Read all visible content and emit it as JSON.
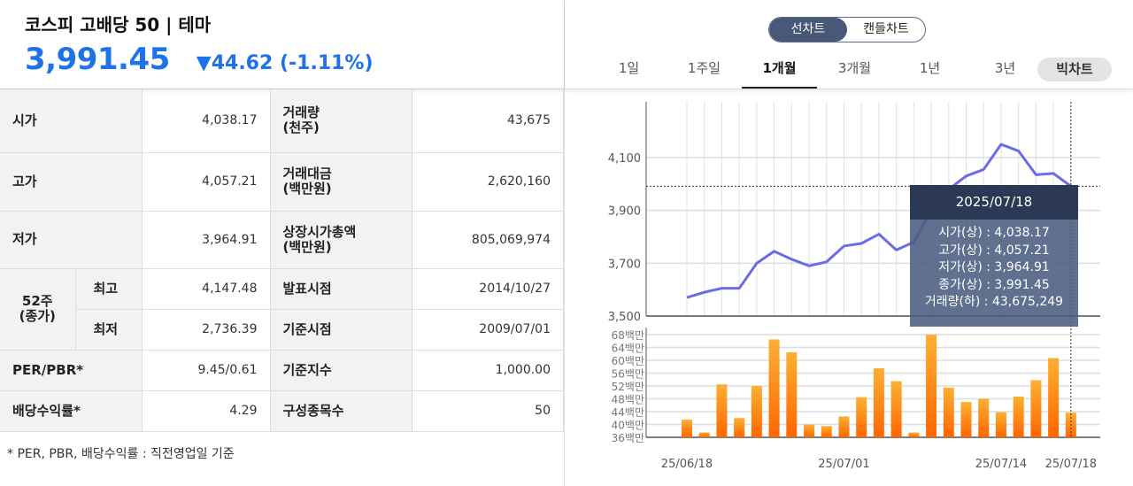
{
  "header": {
    "title": "코스피 고배당 50 | 테마",
    "price": "3,991.45",
    "change": "▼44.62",
    "change_pct": "(-1.11%)"
  },
  "table": {
    "rows": [
      {
        "l1": "시가",
        "v1": "4,038.17",
        "l2": "거래량\n(천주)",
        "v2": "43,675"
      },
      {
        "l1": "고가",
        "v1": "4,057.21",
        "l2": "거래대금\n(백만원)",
        "v2": "2,620,160"
      },
      {
        "l1": "저가",
        "v1": "3,964.91",
        "l2": "상장시가총액\n(백만원)",
        "v2": "805,069,974"
      },
      {
        "l1": "52주\n(종가)",
        "sub": "최고",
        "v1": "4,147.48",
        "l2": "발표시점",
        "v2": "2014/10/27"
      },
      {
        "sub": "최저",
        "v1": "2,736.39",
        "l2": "기준시점",
        "v2": "2009/07/01"
      },
      {
        "l1": "PER/PBR*",
        "v1": "9.45/0.61",
        "l2": "기준지수",
        "v2": "1,000.00"
      },
      {
        "l1": "배당수익률*",
        "v1": "4.29",
        "l2": "구성종목수",
        "v2": "50"
      }
    ]
  },
  "note": "* PER, PBR, 배당수익률 : 직전영업일 기준",
  "chart_toggle": [
    "선차트",
    "캔들차트"
  ],
  "periods": [
    "1일",
    "1주일",
    "1개월",
    "3개월",
    "1년",
    "3년"
  ],
  "active_period": "1개월",
  "big_chart": "빅차트",
  "tooltip": {
    "date": "2025/07/18",
    "lines": [
      "시가(상) : 4,038.17",
      "고가(상) : 4,057.21",
      "저가(상) : 3,964.91",
      "종가(상) : 3,991.45",
      "거래량(하) : 43,675,249"
    ]
  },
  "chart_data": {
    "type": "line",
    "price_series": [
      3570,
      3590,
      3605,
      3605,
      3700,
      3745,
      3715,
      3690,
      3705,
      3765,
      3775,
      3810,
      3750,
      3780,
      3900,
      3980,
      4030,
      4055,
      4150,
      4125,
      4035,
      4040,
      3991.45
    ],
    "volume_series_millions": [
      41.5,
      37.5,
      52.5,
      42,
      52,
      66.5,
      62.5,
      40,
      39.5,
      42.5,
      48.5,
      57.5,
      53.5,
      37.5,
      68,
      51.5,
      47,
      48,
      43.8,
      48.7,
      53.8,
      60.7,
      43.7
    ],
    "price_ylim": [
      3500,
      4200
    ],
    "price_ticks": [
      "3,500",
      "3,700",
      "3,900",
      "4,100"
    ],
    "volume_ylim": [
      36,
      70
    ],
    "volume_ticks": [
      "36백만",
      "40백만",
      "44백만",
      "48백만",
      "52백만",
      "56백만",
      "60백만",
      "64백만",
      "68백만"
    ],
    "x_labels": [
      {
        "i": 0,
        "t": "25/06/18"
      },
      {
        "i": 9,
        "t": "25/07/01"
      },
      {
        "i": 18,
        "t": "25/07/14"
      },
      {
        "i": 22,
        "t": "25/07/18"
      }
    ],
    "line_color": "#6b6be8",
    "bar_color_top": "#fbb034",
    "bar_color_bottom": "#ff6600"
  }
}
